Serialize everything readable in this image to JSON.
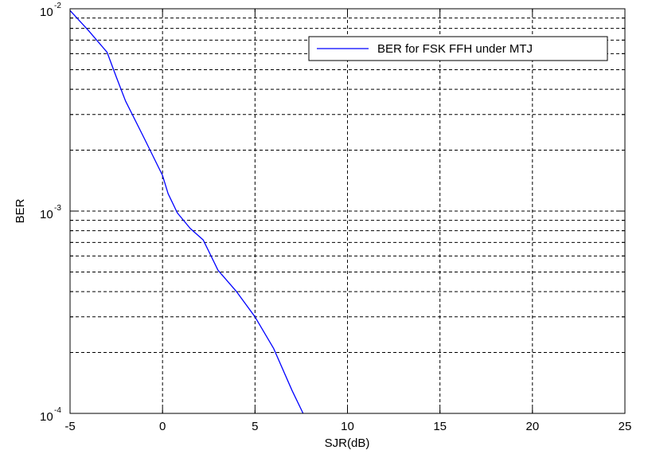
{
  "chart_data": {
    "type": "line",
    "title": "",
    "xlabel": "SJR(dB)",
    "ylabel": "BER",
    "xlim": [
      -5,
      25
    ],
    "ylim": [
      0.0001,
      0.01
    ],
    "yscale": "log",
    "grid": true,
    "legend_position": "top-right",
    "x_ticks": [
      -5,
      0,
      5,
      10,
      15,
      20,
      25
    ],
    "x_tick_labels": [
      "-5",
      "0",
      "5",
      "10",
      "15",
      "20",
      "25"
    ],
    "y_ticks": [
      {
        "value": 0.01,
        "base": "10",
        "exp": "-2"
      },
      {
        "value": 0.001,
        "base": "10",
        "exp": "-3"
      },
      {
        "value": 0.0001,
        "base": "10",
        "exp": "-4"
      }
    ],
    "series": [
      {
        "name": "BER for FSK FFH under MTJ",
        "color": "#0000ff",
        "x": [
          -5,
          -4,
          -3,
          -2.5,
          -2,
          -1,
          0,
          0.3,
          0.8,
          1.5,
          2.2,
          3,
          4,
          5,
          6,
          7,
          7.6
        ],
        "y": [
          0.0098,
          0.0078,
          0.0061,
          0.0046,
          0.0035,
          0.0023,
          0.0015,
          0.00122,
          0.00098,
          0.00082,
          0.00072,
          0.00051,
          0.0004,
          0.0003,
          0.00021,
          0.00013,
          0.0001
        ]
      }
    ]
  }
}
